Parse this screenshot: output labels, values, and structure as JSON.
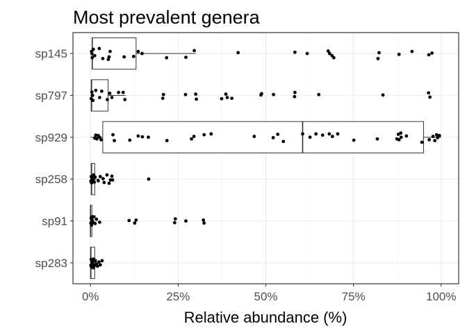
{
  "chart_data": {
    "type": "boxplot",
    "title": "Most prevalent genera",
    "xlabel": "Relative abundance (%)",
    "ylabel": "",
    "xlim": [
      -5,
      105
    ],
    "x_ticks": [
      0,
      25,
      50,
      75,
      100
    ],
    "x_tick_labels": [
      "0%",
      "25%",
      "50%",
      "75%",
      "100%"
    ],
    "grid": true,
    "legend": "none",
    "categories": [
      "sp145",
      "sp797",
      "sp929",
      "sp258",
      "sp91",
      "sp283"
    ],
    "boxes": [
      {
        "name": "sp145",
        "min": 0,
        "q1": 0.5,
        "median": 0.5,
        "q3": 13,
        "max": 30
      },
      {
        "name": "sp797",
        "min": 0,
        "q1": 0.2,
        "median": 0.3,
        "q3": 5,
        "max": 10
      },
      {
        "name": "sp929",
        "min": 0,
        "q1": 3.5,
        "median": 60.5,
        "q3": 95,
        "max": 100
      },
      {
        "name": "sp258",
        "min": 0,
        "q1": 0.2,
        "median": 0.3,
        "q3": 1.2,
        "max": 2.5
      },
      {
        "name": "sp91",
        "min": 0,
        "q1": 0,
        "median": 0,
        "q3": 0.4,
        "max": 1
      },
      {
        "name": "sp283",
        "min": 0,
        "q1": 0,
        "median": 0.1,
        "q3": 1.2,
        "max": 2.5
      }
    ],
    "points": {
      "sp145": [
        [
          0.3,
          -0.05
        ],
        [
          0.5,
          0.1
        ],
        [
          0.8,
          -0.1
        ],
        [
          1.2,
          0.05
        ],
        [
          2.5,
          -0.12
        ],
        [
          3.5,
          0.12
        ],
        [
          5.3,
          0.08
        ],
        [
          5.6,
          -0.05
        ],
        [
          5.1,
          0.14
        ],
        [
          9.6,
          0.08
        ],
        [
          12.3,
          0.07
        ],
        [
          13.6,
          -0.05
        ],
        [
          14.7,
          0.0
        ],
        [
          21.7,
          0.1
        ],
        [
          27.2,
          0.09
        ],
        [
          29.6,
          -0.07
        ],
        [
          42.1,
          -0.02
        ],
        [
          58.3,
          -0.03
        ],
        [
          61.8,
          0.0
        ],
        [
          67.8,
          -0.06
        ],
        [
          68.2,
          0.0
        ],
        [
          68.9,
          0.05
        ],
        [
          69.4,
          0.1
        ],
        [
          82.0,
          0.12
        ],
        [
          82.3,
          -0.02
        ],
        [
          88.0,
          0.02
        ],
        [
          91.7,
          -0.05
        ],
        [
          96.5,
          0.03
        ],
        [
          97.4,
          -0.01
        ],
        [
          0.4,
          0.0
        ]
      ],
      "sp797": [
        [
          0.2,
          0.08
        ],
        [
          0.4,
          -0.08
        ],
        [
          0.7,
          0.12
        ],
        [
          1.5,
          -0.12
        ],
        [
          2.6,
          0.05
        ],
        [
          3.2,
          -0.1
        ],
        [
          4.8,
          0.1
        ],
        [
          5.5,
          -0.05
        ],
        [
          6.1,
          0.05
        ],
        [
          8.0,
          -0.07
        ],
        [
          9.3,
          -0.07
        ],
        [
          9.8,
          0.1
        ],
        [
          20.6,
          0.07
        ],
        [
          20.8,
          -0.02
        ],
        [
          27.1,
          -0.02
        ],
        [
          30.0,
          -0.03
        ],
        [
          30.2,
          0.09
        ],
        [
          37.4,
          0.08
        ],
        [
          38.6,
          -0.03
        ],
        [
          39.0,
          0.05
        ],
        [
          40.3,
          0.07
        ],
        [
          48.6,
          -0.01
        ],
        [
          48.8,
          -0.04
        ],
        [
          52.2,
          -0.02
        ],
        [
          58.2,
          0.03
        ],
        [
          58.3,
          -0.07
        ],
        [
          65.1,
          -0.02
        ],
        [
          83.4,
          -0.01
        ],
        [
          96.4,
          -0.06
        ],
        [
          96.8,
          0.04
        ],
        [
          0.6,
          0.0
        ]
      ],
      "sp929": [
        [
          1.2,
          0.02
        ],
        [
          1.5,
          -0.05
        ],
        [
          1.8,
          0.04
        ],
        [
          2.2,
          -0.04
        ],
        [
          2.6,
          0.0
        ],
        [
          3.0,
          0.06
        ],
        [
          6.4,
          -0.06
        ],
        [
          6.8,
          0.08
        ],
        [
          11.2,
          0.07
        ],
        [
          13.6,
          -0.03
        ],
        [
          14.8,
          -0.01
        ],
        [
          16.5,
          0.0
        ],
        [
          21.8,
          0.08
        ],
        [
          28.8,
          0.04
        ],
        [
          29.5,
          -0.02
        ],
        [
          32.4,
          -0.06
        ],
        [
          34.4,
          -0.08
        ],
        [
          46.7,
          -0.02
        ],
        [
          52.1,
          0.01
        ],
        [
          53.4,
          -0.07
        ],
        [
          55.0,
          0.1
        ],
        [
          60.5,
          -0.08
        ],
        [
          62.6,
          0.0
        ],
        [
          64.3,
          -0.08
        ],
        [
          66.2,
          -0.05
        ],
        [
          68.1,
          -0.08
        ],
        [
          69.0,
          -0.02
        ],
        [
          70.5,
          -0.08
        ],
        [
          75.1,
          0.07
        ],
        [
          81.8,
          0.04
        ],
        [
          87.4,
          0.04
        ],
        [
          88.0,
          0.06
        ],
        [
          88.6,
          0.0
        ],
        [
          90.1,
          -0.03
        ],
        [
          94.5,
          0.12
        ],
        [
          96.6,
          0.06
        ],
        [
          97.7,
          -0.02
        ],
        [
          98.2,
          0.08
        ],
        [
          98.7,
          -0.06
        ],
        [
          99.0,
          0.01
        ],
        [
          99.5,
          -0.04
        ],
        [
          88.5,
          -0.1
        ],
        [
          87.8,
          -0.07
        ]
      ],
      "sp258": [
        [
          0.1,
          0.05
        ],
        [
          0.2,
          -0.06
        ],
        [
          0.3,
          0.09
        ],
        [
          0.5,
          -0.03
        ],
        [
          0.7,
          0.02
        ],
        [
          0.9,
          -0.1
        ],
        [
          1.1,
          0.07
        ],
        [
          1.3,
          -0.05
        ],
        [
          2.2,
          0.04
        ],
        [
          2.8,
          -0.06
        ],
        [
          3.6,
          -0.01
        ],
        [
          3.9,
          0.08
        ],
        [
          4.7,
          -0.1
        ],
        [
          5.3,
          0.1
        ],
        [
          5.7,
          0.02
        ],
        [
          6.1,
          -0.07
        ],
        [
          6.3,
          0.02
        ],
        [
          16.6,
          0.0
        ],
        [
          0.4,
          0.0
        ]
      ],
      "sp91": [
        [
          0.1,
          0.05
        ],
        [
          0.2,
          -0.07
        ],
        [
          0.3,
          0.1
        ],
        [
          0.5,
          -0.02
        ],
        [
          0.8,
          0.04
        ],
        [
          1.0,
          -0.1
        ],
        [
          1.3,
          0.06
        ],
        [
          1.7,
          -0.04
        ],
        [
          2.6,
          0.03
        ],
        [
          11.0,
          -0.01
        ],
        [
          12.6,
          0.05
        ],
        [
          13.0,
          -0.02
        ],
        [
          24.0,
          0.04
        ],
        [
          24.2,
          -0.05
        ],
        [
          27.2,
          0.0
        ],
        [
          32.2,
          -0.02
        ],
        [
          32.4,
          0.05
        ],
        [
          0.4,
          -0.1
        ]
      ],
      "sp283": [
        [
          0.1,
          0.06
        ],
        [
          0.2,
          -0.08
        ],
        [
          0.3,
          0.1
        ],
        [
          0.5,
          -0.03
        ],
        [
          0.7,
          0.04
        ],
        [
          0.9,
          -0.09
        ],
        [
          1.1,
          0.07
        ],
        [
          1.4,
          -0.05
        ],
        [
          1.7,
          0.03
        ],
        [
          2.0,
          0.08
        ],
        [
          2.4,
          -0.02
        ],
        [
          2.8,
          0.05
        ],
        [
          3.3,
          -0.05
        ],
        [
          0.6,
          0.0
        ],
        [
          0.8,
          0.12
        ]
      ]
    }
  }
}
